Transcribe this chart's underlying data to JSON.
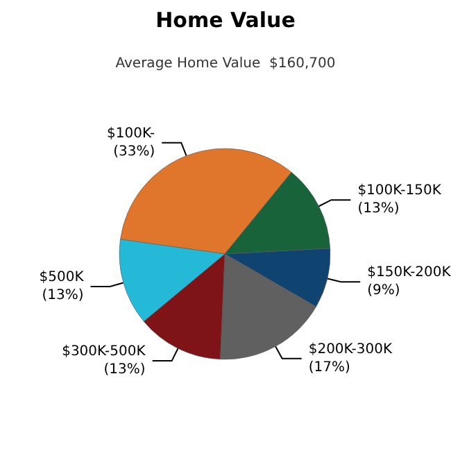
{
  "chart_data": {
    "type": "pie",
    "title": "Home Value",
    "subtitle": "Average Home Value  $160,700",
    "categories": [
      "$100K-",
      "$100K-150K",
      "$150K-200K",
      "$200K-300K",
      "$300K-500K",
      "$500K"
    ],
    "values": [
      33,
      13,
      9,
      17,
      13,
      13
    ],
    "value_labels": [
      "(33%)",
      "(13%)",
      "(9%)",
      "(17%)",
      "(13%)",
      "(13%)"
    ],
    "colors": [
      "#e0752c",
      "#18633a",
      "#0f4470",
      "#606060",
      "#7e1418",
      "#25b9d8"
    ],
    "legend": false
  }
}
